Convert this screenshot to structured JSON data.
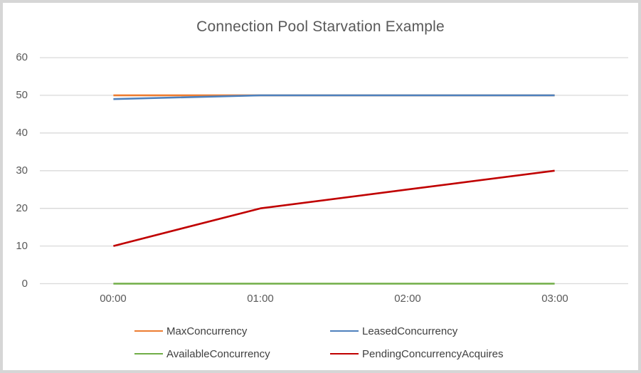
{
  "chart_data": {
    "type": "line",
    "title": "Connection Pool Starvation Example",
    "categories": [
      "00:00",
      "01:00",
      "02:00",
      "03:00"
    ],
    "series": [
      {
        "name": "MaxConcurrency",
        "color": "#ED7D31",
        "values": [
          50,
          50,
          50,
          50
        ]
      },
      {
        "name": "LeasedConcurrency",
        "color": "#4E81BD",
        "values": [
          49,
          50,
          50,
          50
        ]
      },
      {
        "name": "AvailableConcurrency",
        "color": "#70AD47",
        "values": [
          0,
          0,
          0,
          0
        ]
      },
      {
        "name": "PendingConcurrencyAcquires",
        "color": "#C00000",
        "values": [
          10,
          20,
          25,
          30
        ]
      }
    ],
    "ylim": [
      0,
      60
    ],
    "yticks": [
      60,
      50,
      40,
      30,
      20,
      10,
      0
    ],
    "ytick_labels": [
      "60",
      "50",
      "40",
      "30",
      "20",
      "10",
      "0"
    ],
    "grid": "horizontal",
    "gridline_color": "#D9D9D9",
    "legend_position": "bottom",
    "text_color": "#595959"
  }
}
